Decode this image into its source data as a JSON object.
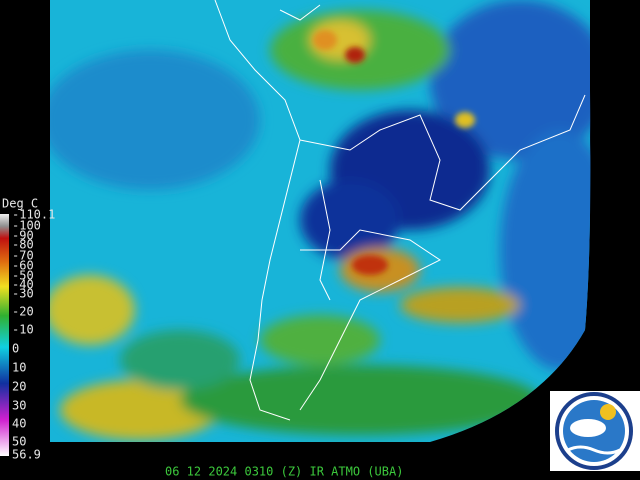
{
  "legend": {
    "title": "Deg C",
    "labels": [
      "-110.1",
      "-100",
      "-90",
      "-80",
      "-70",
      "-60",
      "-50",
      "-40",
      "-30",
      "-20",
      "-10",
      "0",
      "10",
      "20",
      "30",
      "40",
      "50",
      "56.9"
    ]
  },
  "caption": "06 12 2024 0310 (Z) IR  ATMO (UBA)"
}
